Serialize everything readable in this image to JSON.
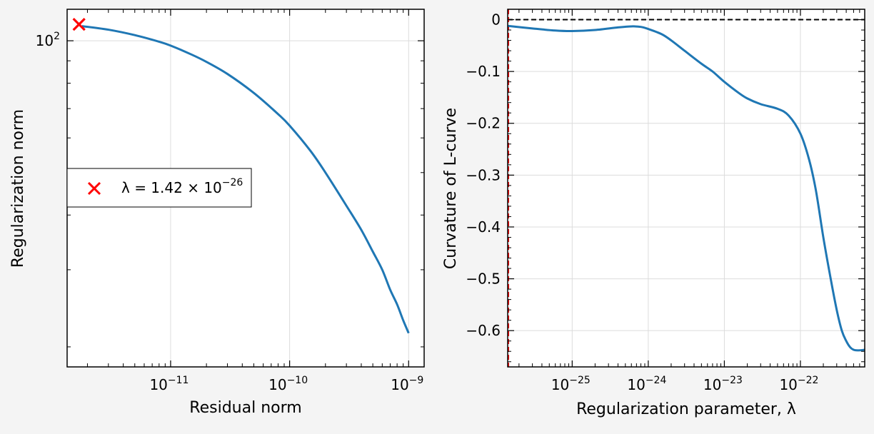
{
  "chart_data": [
    {
      "type": "line",
      "xlabel": "Residual norm",
      "ylabel": "Regularization norm",
      "xscale": "log",
      "yscale": "log",
      "xlim": [
        1.35e-12,
        1.35e-09
      ],
      "ylim": [
        18,
        118
      ],
      "grid": true,
      "x_ticks": [
        {
          "value": 1e-11,
          "base": "10",
          "exp": "−11"
        },
        {
          "value": 1e-10,
          "base": "10",
          "exp": "−10"
        },
        {
          "value": 1e-09,
          "base": "10",
          "exp": "−9"
        }
      ],
      "y_ticks": [
        {
          "value": 100,
          "base": "10",
          "exp": "2"
        }
      ],
      "series": [
        {
          "color": "#1f77b4",
          "x": [
            1.8e-12,
            3e-12,
            5e-12,
            8e-12,
            1e-11,
            1.5e-11,
            2e-11,
            3e-11,
            5e-11,
            8e-11,
            1e-10,
            1.5e-10,
            2e-10,
            3e-10,
            4e-10,
            5e-10,
            6e-10,
            7e-10,
            8e-10,
            9e-10,
            1e-09
          ],
          "y": [
            108,
            106,
            103,
            99.5,
            97.5,
            93,
            89.5,
            84,
            76,
            68,
            64,
            56,
            50,
            42,
            37,
            33,
            30,
            27,
            25,
            23,
            21.5
          ]
        }
      ],
      "marker": {
        "x": 1.7e-12,
        "y": 109,
        "color": "#ff0000",
        "symbol": "x"
      },
      "legend": {
        "placement": "center-left",
        "entries": [
          {
            "symbol": "x",
            "color": "#ff0000",
            "label_prefix": "λ = 1.42 × 10",
            "label_exp": "−26"
          }
        ]
      }
    },
    {
      "type": "line",
      "xlabel": "Regularization parameter, λ",
      "ylabel": "Curvature of L-curve",
      "xscale": "log",
      "yscale": "linear",
      "xlim": [
        1.42e-26,
        7e-22
      ],
      "ylim": [
        -0.67,
        0.02
      ],
      "grid": true,
      "x_ticks": [
        {
          "value": 1e-25,
          "base": "10",
          "exp": "−25"
        },
        {
          "value": 1e-24,
          "base": "10",
          "exp": "−24"
        },
        {
          "value": 1e-23,
          "base": "10",
          "exp": "−23"
        },
        {
          "value": 1e-22,
          "base": "10",
          "exp": "−22"
        }
      ],
      "y_ticks": [
        {
          "value": 0,
          "label": "0"
        },
        {
          "value": -0.1,
          "label": "−0.1"
        },
        {
          "value": -0.2,
          "label": "−0.2"
        },
        {
          "value": -0.3,
          "label": "−0.3"
        },
        {
          "value": -0.4,
          "label": "−0.4"
        },
        {
          "value": -0.5,
          "label": "−0.5"
        },
        {
          "value": -0.6,
          "label": "−0.6"
        }
      ],
      "series": [
        {
          "color": "#1f77b4",
          "x": [
            1.42e-26,
            3e-26,
            6e-26,
            1e-25,
            2e-25,
            4e-25,
            6e-25,
            8e-25,
            1e-24,
            1.5e-24,
            2e-24,
            3e-24,
            5e-24,
            7e-24,
            1e-23,
            1.5e-23,
            2e-23,
            3e-23,
            5e-23,
            7e-23,
            1e-22,
            1.3e-22,
            1.6e-22,
            2e-22,
            2.5e-22,
            3e-22,
            3.5e-22,
            4e-22,
            4.5e-22,
            5e-22,
            5.5e-22,
            6e-22,
            7e-22
          ],
          "y": [
            -0.012,
            -0.017,
            -0.021,
            -0.022,
            -0.02,
            -0.015,
            -0.013,
            -0.014,
            -0.018,
            -0.028,
            -0.04,
            -0.06,
            -0.085,
            -0.1,
            -0.12,
            -0.14,
            -0.152,
            -0.163,
            -0.172,
            -0.185,
            -0.22,
            -0.27,
            -0.33,
            -0.42,
            -0.5,
            -0.56,
            -0.6,
            -0.62,
            -0.632,
            -0.637,
            -0.638,
            -0.638,
            -0.637
          ]
        }
      ],
      "reference_lines": [
        {
          "orientation": "horizontal",
          "value": 0,
          "color": "#000000",
          "style": "dashed"
        },
        {
          "orientation": "vertical",
          "value": 1.42e-26,
          "color": "#ff0000",
          "style": "dashed"
        }
      ]
    }
  ]
}
